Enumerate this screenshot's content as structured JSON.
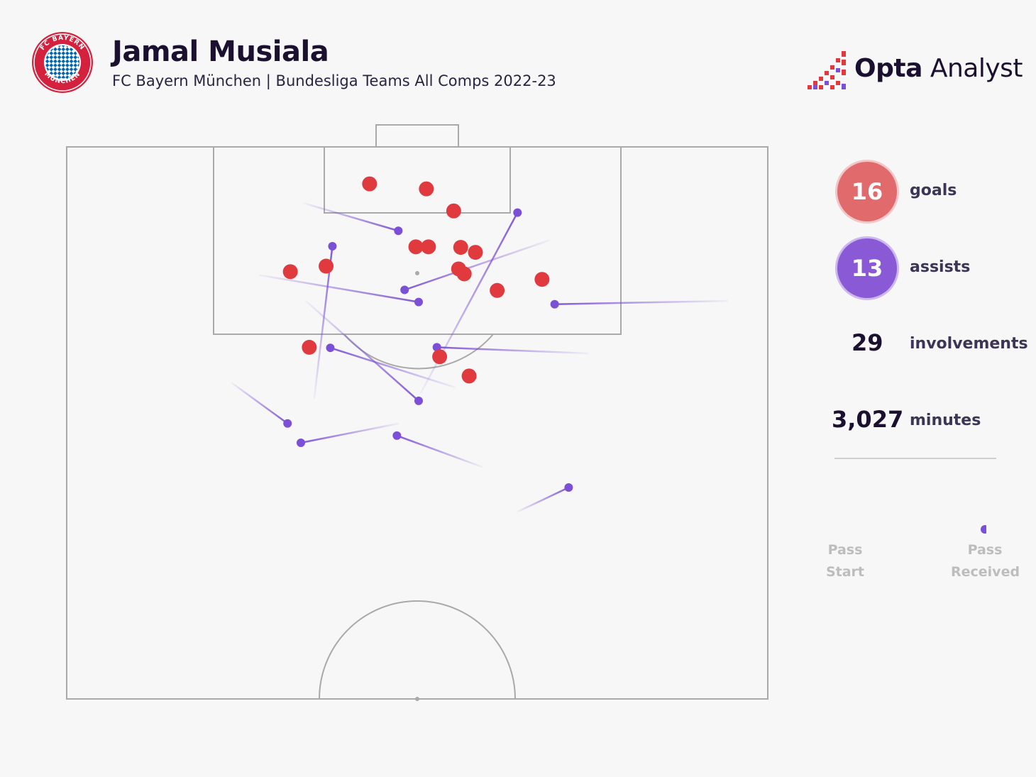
{
  "header": {
    "player_name": "Jamal Musiala",
    "subtitle": "FC Bayern München | Bundesliga Teams All Comps 2022-23",
    "club_logo_text": "FC BAYERN MÜNCHEN",
    "brand_bold": "Opta",
    "brand_light": " Analyst"
  },
  "stats": {
    "goals_value": "16",
    "goals_label": "goals",
    "assists_value": "13",
    "assists_label": "assists",
    "involvements_value": "29",
    "involvements_label": "involvements",
    "minutes_value": "3,027",
    "minutes_label": "minutes"
  },
  "legend": {
    "start_line1": "Pass",
    "start_line2": "Start",
    "end_line1": "Pass",
    "end_line2": "Received"
  },
  "colors": {
    "goal": "#e03a3e",
    "assist": "#7b4fd6",
    "pitch_line": "#a9a9a9",
    "background": "#f7f7f7"
  },
  "chart_data": {
    "type": "scatter",
    "coordinate_system": "pitch-half, x across width 0-100 (left to right), y distance from goal line 0-100 (top goal line to halfway line)",
    "goals": [
      {
        "x": 43.2,
        "y": 6.7
      },
      {
        "x": 51.3,
        "y": 7.6
      },
      {
        "x": 55.2,
        "y": 11.6
      },
      {
        "x": 49.8,
        "y": 18.1
      },
      {
        "x": 51.6,
        "y": 18.1
      },
      {
        "x": 56.2,
        "y": 18.2
      },
      {
        "x": 58.3,
        "y": 19.1
      },
      {
        "x": 31.9,
        "y": 22.6
      },
      {
        "x": 37.0,
        "y": 21.6
      },
      {
        "x": 55.9,
        "y": 22.1
      },
      {
        "x": 56.7,
        "y": 23.0
      },
      {
        "x": 61.4,
        "y": 26.0
      },
      {
        "x": 67.8,
        "y": 24.0
      },
      {
        "x": 34.6,
        "y": 36.3
      },
      {
        "x": 53.2,
        "y": 38.0
      },
      {
        "x": 57.4,
        "y": 41.5
      }
    ],
    "assists": [
      {
        "start": [
          33.8,
          10.2
        ],
        "end": [
          47.3,
          15.2
        ]
      },
      {
        "start": [
          68.9,
          16.9
        ],
        "end": [
          48.2,
          25.9
        ]
      },
      {
        "start": [
          27.4,
          23.2
        ],
        "end": [
          50.2,
          28.1
        ]
      },
      {
        "start": [
          35.3,
          45.6
        ],
        "end": [
          37.9,
          18.0
        ]
      },
      {
        "start": [
          94.3,
          27.9
        ],
        "end": [
          69.6,
          28.5
        ]
      },
      {
        "start": [
          50.5,
          44.6
        ],
        "end": [
          64.3,
          11.9
        ]
      },
      {
        "start": [
          34.1,
          27.9
        ],
        "end": [
          50.2,
          46.0
        ]
      },
      {
        "start": [
          74.4,
          37.4
        ],
        "end": [
          52.8,
          36.3
        ]
      },
      {
        "start": [
          55.5,
          43.6
        ],
        "end": [
          37.6,
          36.4
        ]
      },
      {
        "start": [
          23.5,
          42.7
        ],
        "end": [
          31.5,
          50.1
        ]
      },
      {
        "start": [
          47.4,
          50.1
        ],
        "end": [
          33.4,
          53.6
        ]
      },
      {
        "start": [
          59.3,
          58.0
        ],
        "end": [
          47.1,
          52.3
        ]
      },
      {
        "start": [
          64.3,
          66.1
        ],
        "end": [
          71.6,
          61.7
        ]
      }
    ]
  }
}
